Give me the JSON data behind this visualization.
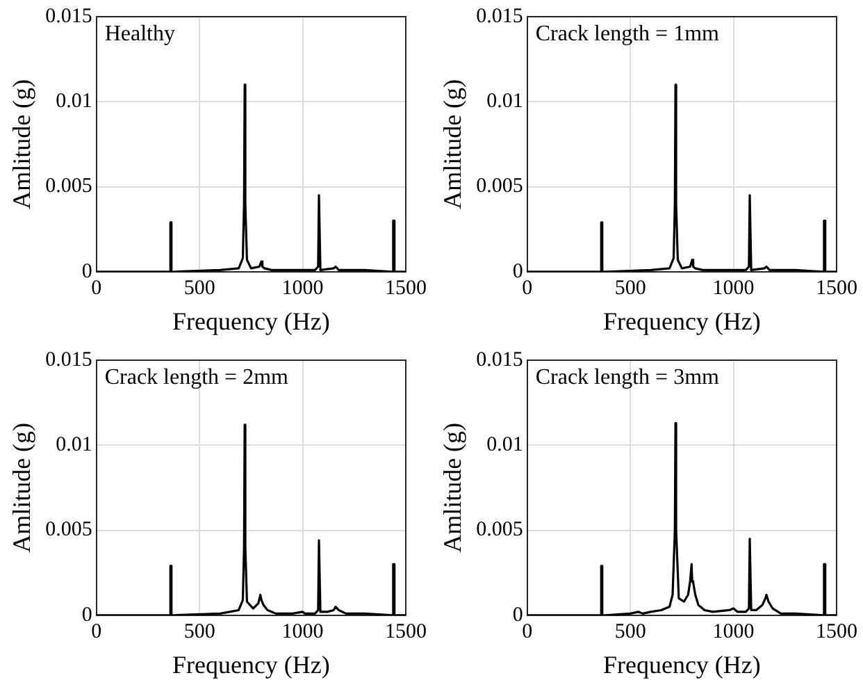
{
  "chart_data": [
    {
      "type": "line",
      "annotations": [
        "Healthy"
      ],
      "xlabel": "Frequency (Hz)",
      "ylabel": "Amlitude (g)",
      "color": "#000000",
      "xlim": [
        0,
        1500
      ],
      "ylim": [
        0,
        0.015
      ],
      "xticks": [
        0,
        500,
        1000,
        1500
      ],
      "yticks": [
        0,
        0.005,
        0.01,
        0.015
      ],
      "grid": true,
      "x": [
        0,
        340,
        357,
        359,
        362,
        364,
        380,
        600,
        690,
        710,
        716,
        719,
        722,
        730,
        750,
        790,
        800,
        805,
        815,
        850,
        1000,
        1060,
        1075,
        1079,
        1082,
        1086,
        1150,
        1160,
        1175,
        1300,
        1436,
        1439,
        1442,
        1445,
        1500
      ],
      "values": [
        0,
        0,
        0,
        0.0029,
        0.0029,
        0,
        0,
        0.0001,
        0.0002,
        0.0008,
        0.004,
        0.011,
        0.004,
        0.0007,
        0.0002,
        0.0003,
        0.0006,
        0.0003,
        0.0002,
        0.0001,
        0.0001,
        0.0001,
        0.0003,
        0.0045,
        0.0045,
        0.0001,
        0.0002,
        0.0003,
        0.0001,
        0.0001,
        0,
        0.003,
        0.003,
        0,
        0
      ]
    },
    {
      "type": "line",
      "annotations": [
        "Crack length = 1mm"
      ],
      "xlabel": "Frequency (Hz)",
      "ylabel": "Amlitude (g)",
      "color": "#000000",
      "xlim": [
        0,
        1500
      ],
      "ylim": [
        0,
        0.015
      ],
      "xticks": [
        0,
        500,
        1000,
        1500
      ],
      "yticks": [
        0,
        0.005,
        0.01,
        0.015
      ],
      "grid": true,
      "x": [
        0,
        340,
        357,
        359,
        362,
        364,
        380,
        600,
        690,
        710,
        716,
        719,
        722,
        730,
        750,
        790,
        800,
        805,
        815,
        850,
        1000,
        1060,
        1075,
        1079,
        1082,
        1086,
        1150,
        1160,
        1175,
        1300,
        1436,
        1439,
        1442,
        1445,
        1500
      ],
      "values": [
        0,
        0,
        0,
        0.0029,
        0.0029,
        0,
        0,
        0.0001,
        0.0002,
        0.0008,
        0.004,
        0.011,
        0.004,
        0.0007,
        0.0002,
        0.0003,
        0.0007,
        0.0003,
        0.0002,
        0.0001,
        0.0001,
        0.0001,
        0.0003,
        0.0045,
        0.0045,
        0.0001,
        0.0002,
        0.0003,
        0.0001,
        0.0001,
        0,
        0.003,
        0.003,
        0,
        0
      ]
    },
    {
      "type": "line",
      "annotations": [
        "Crack length = 2mm"
      ],
      "xlabel": "Frequency (Hz)",
      "ylabel": "Amlitude (g)",
      "color": "#000000",
      "xlim": [
        0,
        1500
      ],
      "ylim": [
        0,
        0.015
      ],
      "xticks": [
        0,
        500,
        1000,
        1500
      ],
      "yticks": [
        0,
        0.005,
        0.01,
        0.015
      ],
      "grid": true,
      "x": [
        0,
        340,
        357,
        359,
        362,
        364,
        380,
        600,
        690,
        710,
        716,
        719,
        722,
        730,
        760,
        785,
        795,
        800,
        810,
        830,
        870,
        950,
        1000,
        1010,
        1060,
        1075,
        1079,
        1082,
        1086,
        1120,
        1150,
        1160,
        1175,
        1210,
        1300,
        1436,
        1439,
        1442,
        1445,
        1500
      ],
      "values": [
        0,
        0,
        0,
        0.0029,
        0.0029,
        0,
        0,
        0.0001,
        0.0003,
        0.0009,
        0.004,
        0.0112,
        0.004,
        0.0008,
        0.0004,
        0.0007,
        0.0012,
        0.0009,
        0.0006,
        0.0003,
        0.0001,
        0.0001,
        0.0002,
        0.0001,
        0.0001,
        0.0003,
        0.0044,
        0.0044,
        0.0002,
        0.0002,
        0.0003,
        0.0005,
        0.0003,
        0.0001,
        0.0001,
        0,
        0.003,
        0.003,
        0,
        0
      ]
    },
    {
      "type": "line",
      "annotations": [
        "Crack length = 3mm"
      ],
      "xlabel": "Frequency (Hz)",
      "ylabel": "Amlitude (g)",
      "color": "#000000",
      "xlim": [
        0,
        1500
      ],
      "ylim": [
        0,
        0.015
      ],
      "xticks": [
        0,
        500,
        1000,
        1500
      ],
      "yticks": [
        0,
        0.005,
        0.01,
        0.015
      ],
      "grid": true,
      "x": [
        0,
        340,
        357,
        359,
        362,
        364,
        380,
        500,
        540,
        560,
        600,
        650,
        690,
        705,
        716,
        719,
        722,
        735,
        760,
        780,
        790,
        797,
        800,
        805,
        815,
        830,
        860,
        900,
        980,
        1000,
        1020,
        1060,
        1075,
        1079,
        1082,
        1086,
        1110,
        1140,
        1155,
        1160,
        1170,
        1190,
        1230,
        1300,
        1436,
        1439,
        1442,
        1445,
        1500
      ],
      "values": [
        0,
        0,
        0,
        0.0029,
        0.0029,
        0,
        0,
        0.0001,
        0.0002,
        0.0001,
        0.0002,
        0.0003,
        0.0005,
        0.0012,
        0.005,
        0.0113,
        0.005,
        0.001,
        0.0008,
        0.0012,
        0.002,
        0.003,
        0.002,
        0.0019,
        0.0012,
        0.0006,
        0.0003,
        0.0002,
        0.0003,
        0.0004,
        0.0002,
        0.0002,
        0.0004,
        0.0045,
        0.0045,
        0.0003,
        0.0003,
        0.0006,
        0.001,
        0.0012,
        0.0008,
        0.0004,
        0.0001,
        0.0001,
        0,
        0.003,
        0.003,
        0,
        0
      ]
    }
  ]
}
